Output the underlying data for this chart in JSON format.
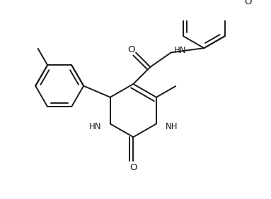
{
  "bg_color": "#ffffff",
  "line_color": "#1a1a1a",
  "figsize": [
    3.83,
    2.82
  ],
  "dpi": 100,
  "lw": 1.4,
  "fs": 8.5,
  "dbo": 0.012,
  "xlim": [
    0,
    383
  ],
  "ylim": [
    0,
    282
  ]
}
